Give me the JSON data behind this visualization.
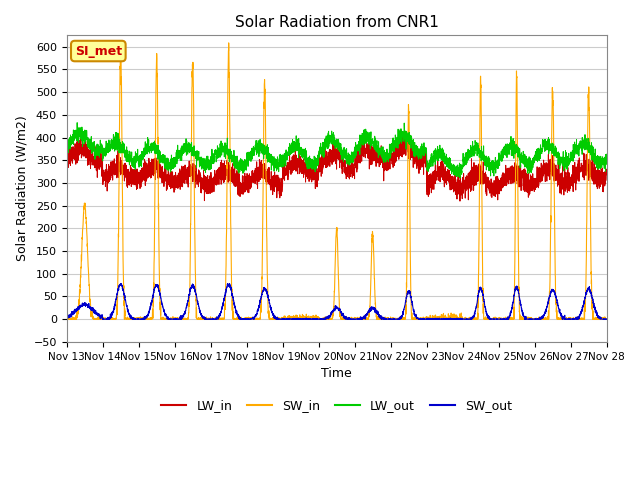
{
  "title": "Solar Radiation from CNR1",
  "xlabel": "Time",
  "ylabel": "Solar Radiation (W/m2)",
  "ylim": [
    -50,
    625
  ],
  "yticks": [
    -50,
    0,
    50,
    100,
    150,
    200,
    250,
    300,
    350,
    400,
    450,
    500,
    550,
    600
  ],
  "xtick_labels": [
    "Nov 13",
    "Nov 14",
    "Nov 15",
    "Nov 16",
    "Nov 17",
    "Nov 18",
    "Nov 19",
    "Nov 20",
    "Nov 21",
    "Nov 22",
    "Nov 23",
    "Nov 24",
    "Nov 25",
    "Nov 26",
    "Nov 27",
    "Nov 28"
  ],
  "colors": {
    "LW_in": "#cc0000",
    "SW_in": "#ffaa00",
    "LW_out": "#00cc00",
    "SW_out": "#0000cc"
  },
  "annotation_text": "SI_met",
  "annotation_bg": "#ffff99",
  "annotation_border": "#cc8800",
  "background_color": "#ffffff",
  "grid_color": "#cccccc",
  "sw_in_peak_heights": [
    250,
    590,
    575,
    570,
    590,
    520,
    0,
    200,
    190,
    470,
    0,
    530,
    540,
    500,
    510
  ],
  "sw_in_spike_widths": [
    0.08,
    0.04,
    0.04,
    0.04,
    0.04,
    0.04,
    0.0,
    0.04,
    0.04,
    0.03,
    0.0,
    0.03,
    0.03,
    0.04,
    0.04
  ],
  "lw_in_base": [
    360,
    320,
    320,
    310,
    310,
    310,
    330,
    345,
    360,
    365,
    305,
    305,
    310,
    315,
    320
  ],
  "lw_out_base": [
    390,
    370,
    360,
    360,
    355,
    360,
    360,
    375,
    380,
    385,
    345,
    355,
    360,
    365,
    365
  ],
  "n_days": 15
}
